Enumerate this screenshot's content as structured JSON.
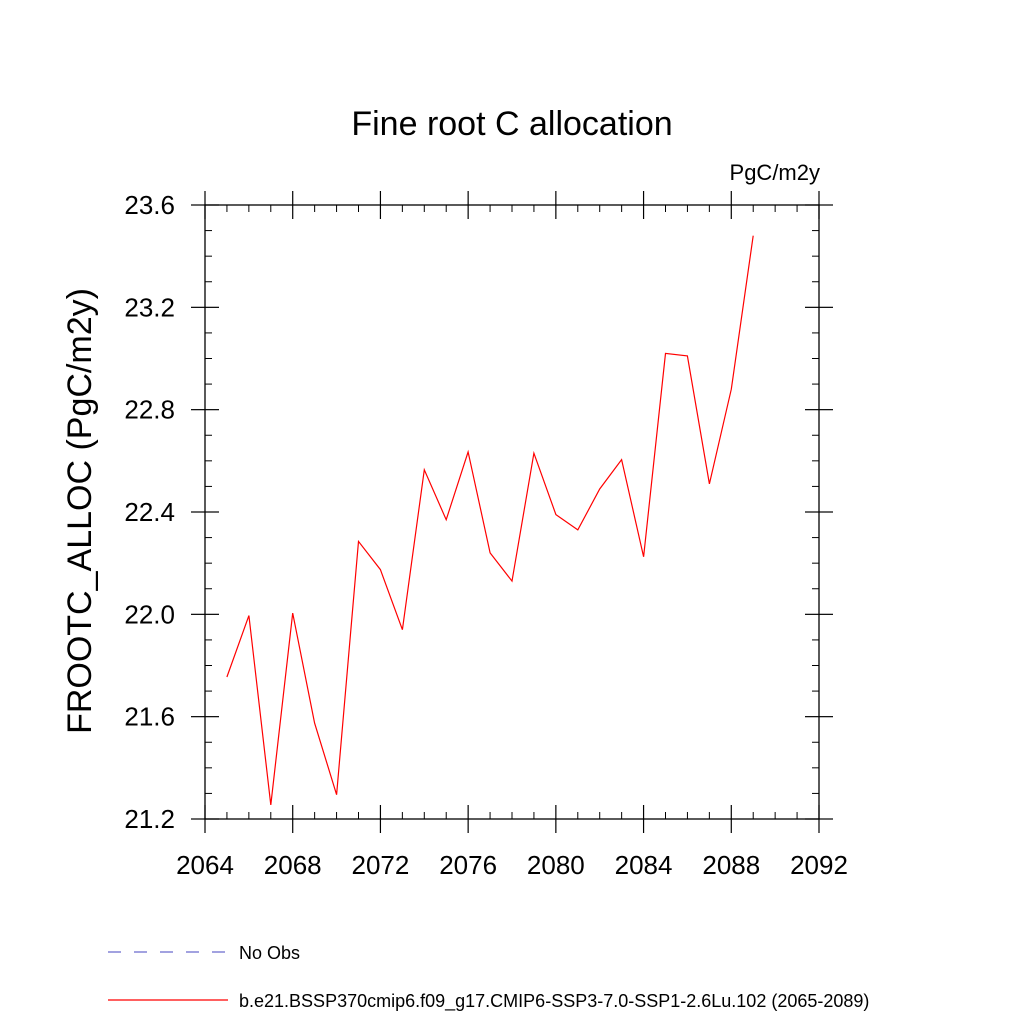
{
  "chart_data": {
    "type": "line",
    "title": "Fine root C allocation",
    "units_label": "PgC/m2y",
    "ylabel": "FROOTC_ALLOC  (PgC/m2y)",
    "xlabel": "",
    "xlim": [
      2064,
      2092
    ],
    "ylim": [
      21.2,
      23.6
    ],
    "x_ticks": [
      "2064",
      "2068",
      "2072",
      "2076",
      "2080",
      "2084",
      "2088",
      "2092"
    ],
    "y_ticks": [
      "21.2",
      "21.6",
      "22.0",
      "22.4",
      "22.8",
      "23.2",
      "23.6"
    ],
    "grid": false,
    "series": [
      {
        "name": "b.e21.BSSP370cmip6.f09_g17.CMIP6-SSP3-7.0-SSP1-2.6Lu.102 (2065-2089)",
        "color": "#ff0000",
        "x": [
          2065,
          2066,
          2067,
          2068,
          2069,
          2070,
          2071,
          2072,
          2073,
          2074,
          2075,
          2076,
          2077,
          2078,
          2079,
          2080,
          2081,
          2082,
          2083,
          2084,
          2085,
          2086,
          2087,
          2088,
          2089
        ],
        "y": [
          21.755,
          21.995,
          21.255,
          22.005,
          21.575,
          21.295,
          22.285,
          22.175,
          21.94,
          22.565,
          22.37,
          22.635,
          22.24,
          22.13,
          22.63,
          22.39,
          22.33,
          22.49,
          22.605,
          22.225,
          23.02,
          23.01,
          22.51,
          22.88,
          23.48
        ]
      }
    ],
    "legend": [
      {
        "label": "No Obs",
        "color": "#6a6acd",
        "style": "dashed"
      },
      {
        "label": "b.e21.BSSP370cmip6.f09_g17.CMIP6-SSP3-7.0-SSP1-2.6Lu.102 (2065-2089)",
        "color": "#ff0000",
        "style": "solid"
      }
    ],
    "legend_position": "bottom-left"
  }
}
